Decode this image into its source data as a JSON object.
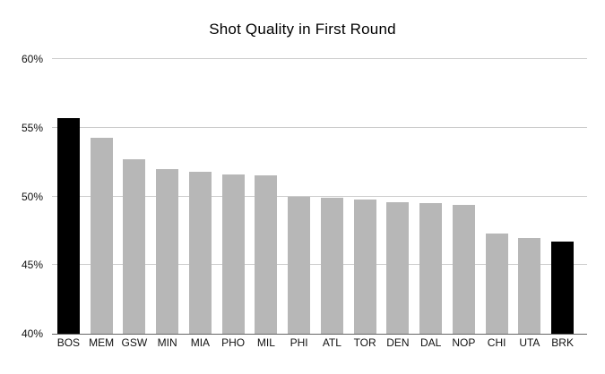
{
  "title": "Shot Quality in First Round",
  "colors": {
    "background": "#ffffff",
    "bar": "#b7b7b7",
    "bar_highlight": "#000000",
    "gridline": "#cccccc",
    "axis_line": "#666666",
    "text": "#111111"
  },
  "chart_data": {
    "type": "bar",
    "title": "Shot Quality in First Round",
    "categories": [
      "BOS",
      "MEM",
      "GSW",
      "MIN",
      "MIA",
      "PHO",
      "MIL",
      "PHI",
      "ATL",
      "TOR",
      "DEN",
      "DAL",
      "NOP",
      "CHI",
      "UTA",
      "BRK"
    ],
    "values": [
      55.7,
      54.3,
      52.7,
      52.0,
      51.8,
      51.6,
      51.5,
      50.0,
      49.9,
      49.8,
      49.6,
      49.5,
      49.4,
      47.3,
      47.0,
      46.7
    ],
    "unit": "%",
    "highlighted_categories": [
      "BOS",
      "BRK"
    ],
    "xlabel": "",
    "ylabel": "",
    "ylim": [
      40,
      60
    ],
    "yticks": [
      40,
      45,
      50,
      55,
      60
    ],
    "ytick_labels": [
      "40%",
      "45%",
      "50%",
      "55%",
      "60%"
    ],
    "grid": true,
    "legend_position": "none"
  }
}
